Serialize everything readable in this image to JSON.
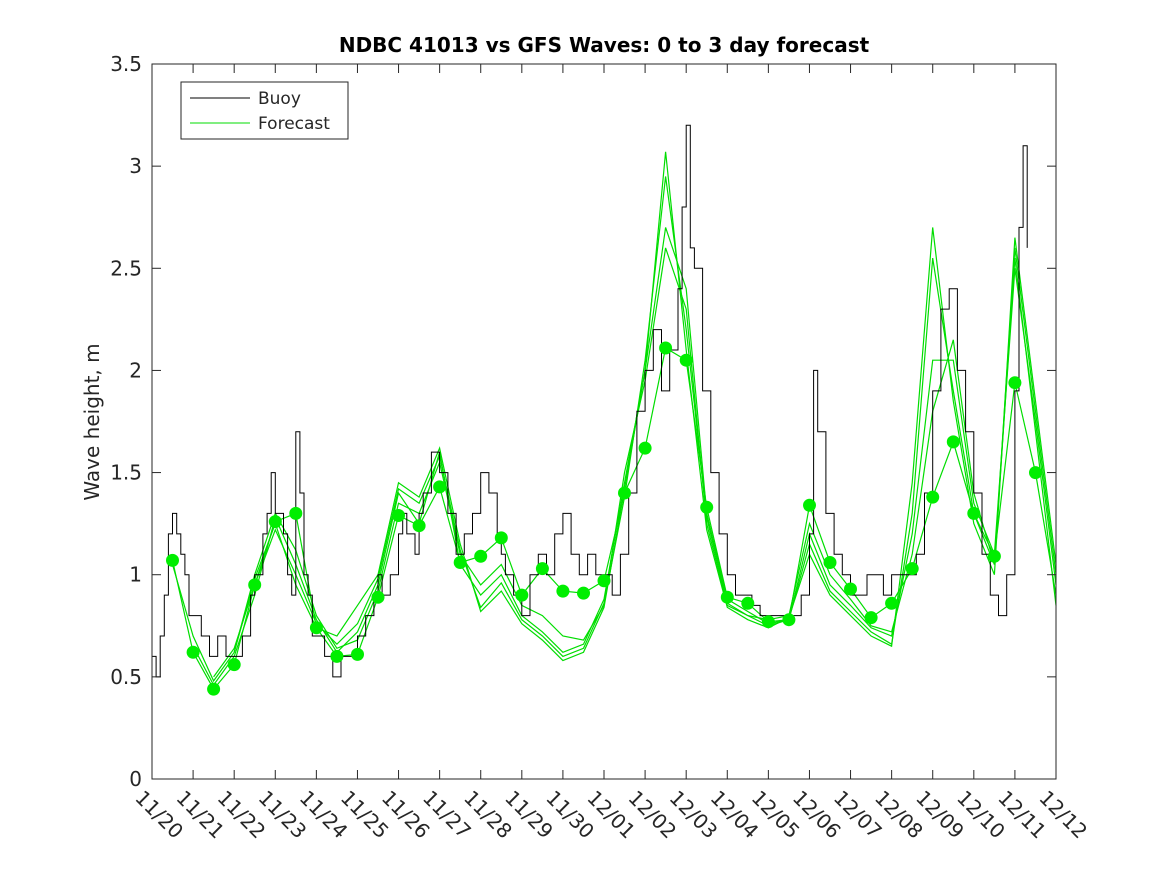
{
  "chart_data": {
    "type": "line",
    "title": "NDBC 41013 vs GFS Waves: 0 to 3 day forecast",
    "xlabel": "",
    "ylabel": "Wave height, m",
    "ylim": [
      0,
      3.5
    ],
    "xlim": [
      0,
      22
    ],
    "yticks": [
      0,
      0.5,
      1,
      1.5,
      2,
      2.5,
      3,
      3.5
    ],
    "ytick_labels": [
      "0",
      "0.5",
      "1",
      "1.5",
      "2",
      "2.5",
      "3",
      "3.5"
    ],
    "xtick_labels": [
      "11/20",
      "11/21",
      "11/22",
      "11/23",
      "11/24",
      "11/25",
      "11/26",
      "11/27",
      "11/28",
      "11/29",
      "11/30",
      "12/01",
      "12/02",
      "12/03",
      "12/04",
      "12/05",
      "12/06",
      "12/07",
      "12/08",
      "12/09",
      "12/10",
      "12/11",
      "12/12"
    ],
    "legend": {
      "placement": "top-left",
      "entries": [
        {
          "label": "Buoy",
          "color": "#000000"
        },
        {
          "label": "Forecast",
          "color": "#00dd00"
        }
      ]
    },
    "colors": {
      "buoy": "#000000",
      "forecast": "#00dd00",
      "marker": "#00ee00"
    },
    "buoy": {
      "x": [
        0,
        0.1,
        0.2,
        0.3,
        0.4,
        0.5,
        0.6,
        0.7,
        0.8,
        0.9,
        1.0,
        1.2,
        1.4,
        1.6,
        1.8,
        2.0,
        2.2,
        2.4,
        2.5,
        2.7,
        2.8,
        2.9,
        3.0,
        3.1,
        3.2,
        3.3,
        3.4,
        3.5,
        3.6,
        3.7,
        3.8,
        3.9,
        4.0,
        4.2,
        4.4,
        4.5,
        4.6,
        4.7,
        4.8,
        5.0,
        5.2,
        5.4,
        5.5,
        5.6,
        5.8,
        6.0,
        6.1,
        6.2,
        6.4,
        6.5,
        6.6,
        6.8,
        7.0,
        7.2,
        7.4,
        7.6,
        7.8,
        8.0,
        8.1,
        8.2,
        8.3,
        8.4,
        8.5,
        8.6,
        8.8,
        9.0,
        9.2,
        9.4,
        9.6,
        9.8,
        10.0,
        10.2,
        10.4,
        10.6,
        10.8,
        11.0,
        11.2,
        11.4,
        11.6,
        11.8,
        12.0,
        12.2,
        12.4,
        12.6,
        12.8,
        12.9,
        13.0,
        13.1,
        13.2,
        13.4,
        13.6,
        13.8,
        14.0,
        14.2,
        14.4,
        14.6,
        14.8,
        15.0,
        15.2,
        15.4,
        15.6,
        15.8,
        16.0,
        16.1,
        16.2,
        16.4,
        16.6,
        16.8,
        17.0,
        17.2,
        17.4,
        17.6,
        17.8,
        18.0,
        18.2,
        18.4,
        18.6,
        18.8,
        19.0,
        19.2,
        19.4,
        19.6,
        19.8,
        20.0,
        20.2,
        20.4,
        20.6,
        20.8,
        21.0,
        21.1,
        21.2,
        21.3
      ],
      "y": [
        0.6,
        0.5,
        0.7,
        0.9,
        1.2,
        1.3,
        1.2,
        1.1,
        1.0,
        0.8,
        0.8,
        0.7,
        0.6,
        0.7,
        0.6,
        0.6,
        0.7,
        0.9,
        1.0,
        1.2,
        1.3,
        1.5,
        1.3,
        1.3,
        1.2,
        1.0,
        0.9,
        1.7,
        1.4,
        1.0,
        0.9,
        0.7,
        0.7,
        0.6,
        0.5,
        0.5,
        0.6,
        0.6,
        0.6,
        0.7,
        0.8,
        0.9,
        1.0,
        0.9,
        1.0,
        1.2,
        1.3,
        1.2,
        1.1,
        1.3,
        1.4,
        1.6,
        1.5,
        1.3,
        1.1,
        1.2,
        1.3,
        1.5,
        1.5,
        1.4,
        1.4,
        1.2,
        1.1,
        1.0,
        0.9,
        0.8,
        1.0,
        1.1,
        1.0,
        1.2,
        1.3,
        1.1,
        1.0,
        1.1,
        1.0,
        1.0,
        0.9,
        1.1,
        1.4,
        1.8,
        2.0,
        2.2,
        1.9,
        2.1,
        2.4,
        2.8,
        3.2,
        2.6,
        2.5,
        1.9,
        1.5,
        1.2,
        1.0,
        0.9,
        0.9,
        0.85,
        0.8,
        0.8,
        0.8,
        0.8,
        0.8,
        0.9,
        1.2,
        2.0,
        1.7,
        1.3,
        1.1,
        1.0,
        0.9,
        0.9,
        1.0,
        1.0,
        0.9,
        1.0,
        1.0,
        1.0,
        1.1,
        1.4,
        1.9,
        2.3,
        2.4,
        2.0,
        1.7,
        1.4,
        1.1,
        0.9,
        0.8,
        1.0,
        1.9,
        2.7,
        3.1,
        2.6
      ]
    },
    "forecast_series": [
      {
        "x": [
          0.5,
          1.0,
          1.5,
          2.0,
          2.5,
          3.0,
          3.5,
          4.0,
          4.5,
          5.0,
          5.5,
          6.0,
          6.5,
          7.0,
          7.5,
          8.0,
          8.5,
          9.0,
          9.5,
          10.0,
          10.5,
          11.0,
          11.5,
          12.0,
          12.5,
          13.0,
          13.5,
          14.0,
          14.5,
          15.0,
          15.5,
          16.0,
          16.5,
          17.0,
          17.5,
          18.0,
          18.5,
          19.0,
          19.5,
          20.0,
          20.5,
          21.0,
          21.5,
          22.0
        ],
        "y": [
          1.07,
          0.62,
          0.44,
          0.56,
          0.95,
          1.26,
          1.3,
          0.74,
          0.6,
          0.61,
          0.89,
          1.29,
          1.24,
          1.43,
          1.06,
          1.09,
          1.18,
          0.9,
          1.03,
          0.92,
          0.91,
          0.97,
          1.4,
          1.62,
          2.11,
          2.05,
          1.33,
          0.89,
          0.86,
          0.77,
          0.78,
          1.34,
          1.06,
          0.93,
          0.79,
          0.86,
          1.03,
          1.38,
          1.65,
          1.3,
          1.09,
          1.94,
          1.5,
          0.9
        ]
      },
      {
        "x": [
          0.5,
          1.0,
          1.5,
          2.0,
          2.5,
          3.0,
          3.5,
          4.0,
          4.5,
          5.0,
          5.5,
          6.0,
          6.5,
          7.0,
          7.5,
          8.0,
          8.5,
          9.0,
          9.5,
          10.0,
          10.5,
          11.0,
          11.5,
          12.0,
          12.5,
          13.0,
          13.5,
          14.0,
          14.5,
          15.0,
          15.5,
          16.0,
          16.5,
          17.0,
          17.5,
          18.0,
          18.5,
          19.0,
          19.5,
          20.0,
          20.5,
          21.0,
          21.5,
          22.0
        ],
        "y": [
          1.05,
          0.7,
          0.48,
          0.62,
          1.0,
          1.3,
          1.12,
          0.8,
          0.64,
          0.68,
          0.92,
          1.35,
          1.3,
          1.55,
          1.1,
          0.95,
          1.05,
          0.85,
          0.8,
          0.7,
          0.68,
          0.85,
          1.5,
          1.95,
          2.6,
          2.3,
          1.25,
          0.85,
          0.8,
          0.78,
          0.8,
          1.25,
          1.0,
          0.88,
          0.75,
          0.72,
          1.1,
          1.8,
          2.15,
          1.4,
          1.05,
          2.55,
          1.7,
          0.85
        ]
      },
      {
        "x": [
          1.0,
          1.5,
          2.0,
          2.5,
          3.0,
          3.5,
          4.0,
          4.5,
          5.0,
          5.5,
          6.0,
          6.5,
          7.0,
          7.5,
          8.0,
          8.5,
          9.0,
          9.5,
          10.0,
          10.5,
          11.0,
          11.5,
          12.0,
          12.5,
          13.0,
          13.5,
          14.0,
          14.5,
          15.0,
          15.5,
          16.0,
          16.5,
          17.0,
          17.5,
          18.0,
          18.5,
          19.0,
          19.5,
          20.0,
          20.5,
          21.0,
          21.5,
          22.0
        ],
        "y": [
          0.65,
          0.46,
          0.6,
          0.9,
          1.28,
          1.05,
          0.78,
          0.62,
          0.72,
          0.95,
          1.4,
          1.25,
          1.6,
          1.05,
          0.9,
          1.0,
          0.8,
          0.72,
          0.62,
          0.66,
          0.88,
          1.45,
          2.0,
          2.7,
          2.4,
          1.3,
          0.88,
          0.82,
          0.76,
          0.78,
          1.2,
          0.95,
          0.85,
          0.74,
          0.7,
          1.2,
          2.05,
          2.05,
          1.35,
          1.1,
          2.5,
          1.75,
          0.95
        ]
      },
      {
        "x": [
          1.5,
          2.0,
          2.5,
          3.0,
          3.5,
          4.0,
          4.5,
          5.0,
          5.5,
          6.0,
          6.5,
          7.0,
          7.5,
          8.0,
          8.5,
          9.0,
          9.5,
          10.0,
          10.5,
          11.0,
          11.5,
          12.0,
          12.5,
          13.0,
          13.5,
          14.0,
          14.5,
          15.0,
          15.5,
          16.0,
          16.5,
          17.0,
          17.5,
          18.0,
          18.5,
          19.0,
          19.5,
          20.0,
          20.5,
          21.0,
          21.5,
          22.0
        ],
        "y": [
          0.5,
          0.64,
          0.95,
          1.22,
          1.0,
          0.76,
          0.66,
          0.76,
          0.98,
          1.42,
          1.35,
          1.58,
          1.12,
          0.84,
          0.96,
          0.78,
          0.7,
          0.6,
          0.64,
          0.86,
          1.38,
          2.05,
          2.95,
          2.2,
          1.28,
          0.86,
          0.8,
          0.75,
          0.78,
          1.15,
          0.92,
          0.82,
          0.72,
          0.66,
          1.3,
          2.55,
          1.9,
          1.3,
          1.05,
          2.6,
          1.8,
          1.0
        ]
      },
      {
        "x": [
          2.0,
          2.5,
          3.0,
          3.5,
          4.0,
          4.5,
          5.0,
          5.5,
          6.0,
          6.5,
          7.0,
          7.5,
          8.0,
          8.5,
          9.0,
          9.5,
          10.0,
          10.5,
          11.0,
          11.5,
          12.0,
          12.5,
          13.0,
          13.5,
          14.0,
          14.5,
          15.0,
          15.5,
          16.0,
          16.5,
          17.0,
          17.5,
          18.0,
          18.5,
          19.0,
          19.5,
          20.0,
          20.5,
          21.0,
          21.5,
          22.0
        ],
        "y": [
          0.62,
          0.98,
          1.25,
          0.95,
          0.74,
          0.7,
          0.85,
          1.0,
          1.45,
          1.38,
          1.62,
          1.15,
          0.82,
          0.92,
          0.76,
          0.68,
          0.58,
          0.62,
          0.84,
          1.42,
          2.0,
          3.07,
          2.1,
          1.22,
          0.84,
          0.78,
          0.74,
          0.79,
          1.1,
          0.9,
          0.8,
          0.7,
          0.65,
          1.45,
          2.7,
          1.85,
          1.25,
          1.0,
          2.65,
          1.85,
          1.05
        ]
      }
    ]
  }
}
